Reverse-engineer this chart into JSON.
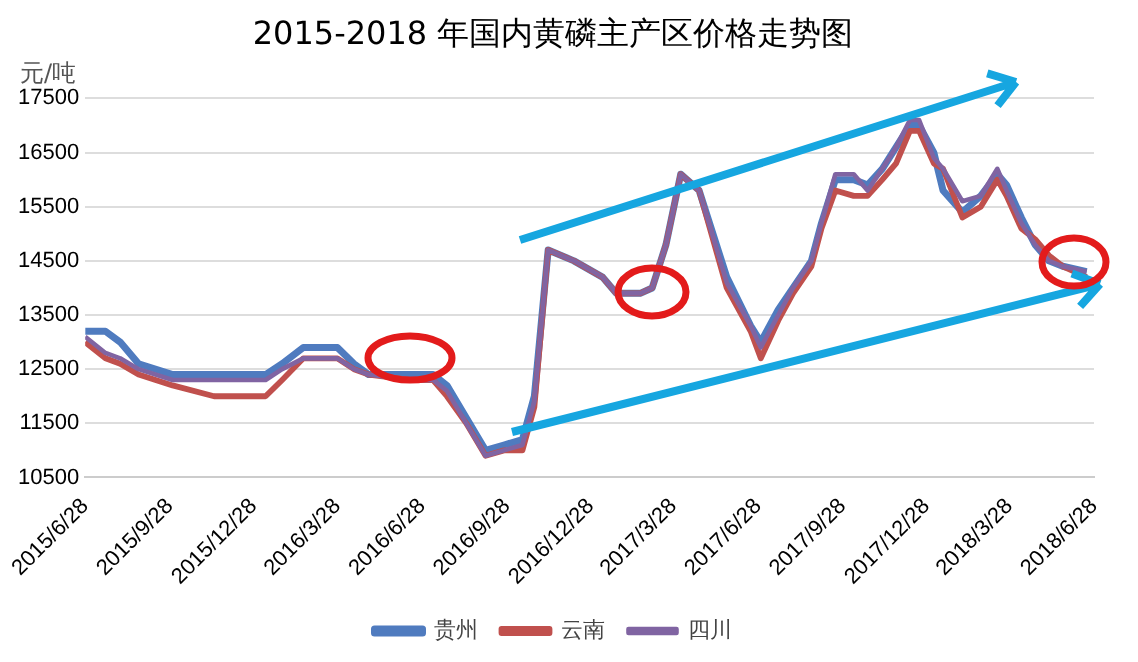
{
  "chart_data": {
    "type": "line",
    "title": "2015-2018 年国内黄磷主产区价格走势图",
    "ylabel": "元/吨",
    "xlim": [
      "2015-06-28",
      "2018-06-28"
    ],
    "xticks": [
      {
        "value": "2015-06-28",
        "label": "2015/6/28"
      },
      {
        "value": "2015-09-28",
        "label": "2015/9/28"
      },
      {
        "value": "2015-12-28",
        "label": "2015/12/28"
      },
      {
        "value": "2016-03-28",
        "label": "2016/3/28"
      },
      {
        "value": "2016-06-28",
        "label": "2016/6/28"
      },
      {
        "value": "2016-09-28",
        "label": "2016/9/28"
      },
      {
        "value": "2016-12-28",
        "label": "2016/12/28"
      },
      {
        "value": "2017-03-28",
        "label": "2017/3/28"
      },
      {
        "value": "2017-06-28",
        "label": "2017/6/28"
      },
      {
        "value": "2017-09-28",
        "label": "2017/9/28"
      },
      {
        "value": "2017-12-28",
        "label": "2017/12/28"
      },
      {
        "value": "2018-03-28",
        "label": "2018/3/28"
      },
      {
        "value": "2018-06-28",
        "label": "2018/6/28"
      }
    ],
    "ylim": [
      10500,
      17500
    ],
    "yticks": [
      10500,
      11500,
      12500,
      13500,
      14500,
      15500,
      16500,
      17500
    ],
    "grid": "y",
    "legend": "bottom",
    "marker": "none",
    "line_style": "solid",
    "x": [
      "2015-06-28",
      "2015-07-20",
      "2015-08-05",
      "2015-08-25",
      "2015-10-01",
      "2015-11-15",
      "2016-01-10",
      "2016-01-28",
      "2016-02-20",
      "2016-03-28",
      "2016-04-15",
      "2016-05-01",
      "2016-06-15",
      "2016-07-10",
      "2016-07-25",
      "2016-08-15",
      "2016-09-05",
      "2016-09-25",
      "2016-10-15",
      "2016-10-28",
      "2016-11-12",
      "2016-12-10",
      "2017-01-10",
      "2017-01-25",
      "2017-02-20",
      "2017-03-05",
      "2017-03-20",
      "2017-04-05",
      "2017-04-25",
      "2017-05-25",
      "2017-06-20",
      "2017-07-01",
      "2017-07-20",
      "2017-08-05",
      "2017-08-25",
      "2017-09-05",
      "2017-09-20",
      "2017-10-10",
      "2017-10-25",
      "2017-11-10",
      "2017-11-25",
      "2017-12-10",
      "2017-12-20",
      "2018-01-05",
      "2018-01-15",
      "2018-02-05",
      "2018-02-25",
      "2018-03-15",
      "2018-03-25",
      "2018-04-10",
      "2018-04-25",
      "2018-05-10",
      "2018-05-25",
      "2018-06-20"
    ],
    "series": [
      {
        "name": "贵州",
        "color": "#4f7bbf",
        "values": [
          13200,
          13200,
          13000,
          12600,
          12400,
          12400,
          12400,
          12600,
          12900,
          12900,
          12600,
          12400,
          12400,
          12400,
          12200,
          11600,
          11000,
          11100,
          11200,
          12000,
          14700,
          14500,
          14200,
          13900,
          13900,
          14000,
          14800,
          16100,
          15800,
          14200,
          13300,
          13000,
          13600,
          14000,
          14500,
          15200,
          16000,
          16000,
          15900,
          16200,
          16600,
          17000,
          17000,
          16500,
          15800,
          15400,
          15700,
          16100,
          15900,
          15300,
          14800,
          14500,
          14400,
          14300
        ]
      },
      {
        "name": "云南",
        "color": "#c0504d",
        "values": [
          13000,
          12700,
          12600,
          12400,
          12200,
          12000,
          12000,
          12300,
          12700,
          12700,
          12500,
          12400,
          12300,
          12300,
          12000,
          11500,
          10900,
          11000,
          11000,
          11800,
          14700,
          14500,
          14200,
          13900,
          13900,
          14000,
          14800,
          16100,
          15800,
          14000,
          13200,
          12700,
          13400,
          13900,
          14400,
          15100,
          15800,
          15700,
          15700,
          16000,
          16300,
          16900,
          16900,
          16300,
          16200,
          15300,
          15500,
          16000,
          15700,
          15100,
          14900,
          14600,
          14400,
          14200
        ]
      },
      {
        "name": "四川",
        "color": "#8064a2",
        "values": [
          13100,
          12800,
          12700,
          12500,
          12300,
          12300,
          12300,
          12500,
          12700,
          12700,
          12500,
          12400,
          12300,
          12300,
          12100,
          11500,
          10900,
          11000,
          11100,
          11900,
          14700,
          14500,
          14200,
          13900,
          13900,
          14000,
          14800,
          16100,
          15800,
          14100,
          13300,
          12900,
          13500,
          14000,
          14500,
          15200,
          16100,
          16100,
          15800,
          16200,
          16600,
          17100,
          17100,
          16400,
          16200,
          15600,
          15700,
          16200,
          15800,
          15200,
          14800,
          14500,
          14400,
          14300
        ]
      }
    ]
  }
}
